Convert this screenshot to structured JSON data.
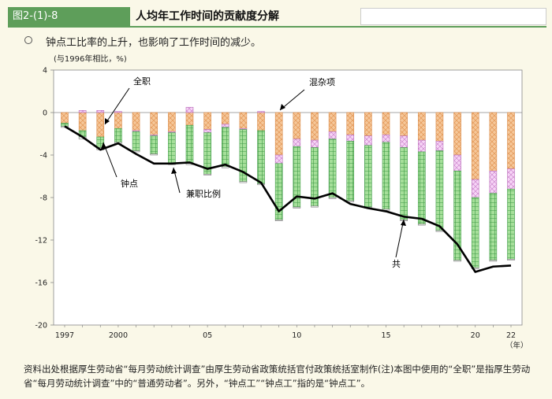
{
  "header": {
    "figure_id": "图2-(1)-8",
    "title": "人均年工作时间的贡献度分解"
  },
  "lead": "钟点工比率的上升，也影响了工作时间的减少。",
  "footnote": "资料出处根据厚生劳动省“每月劳动统计调查”由厚生劳动省政策统括官付政策统括室制作(注)本图中使用的“全职”是指厚生劳动省“每月劳动统计调查”中的“普通劳动者”。另外，“钟点工”“钟点工”指的是“钟点工”。",
  "colors": {
    "header_green": "#5e9e5a",
    "fulltime": "#f5c79a",
    "parttime": "#a6df9a",
    "mixed": "#f0c8f0",
    "total_line": "#000000"
  },
  "chart_data": {
    "type": "bar",
    "unit_label": "(与1996年相比，%)",
    "x": [
      1997,
      1998,
      1999,
      2000,
      2001,
      2002,
      2003,
      2004,
      2005,
      2006,
      2007,
      2008,
      2009,
      2010,
      2011,
      2012,
      2013,
      2014,
      2015,
      2016,
      2017,
      2018,
      2019,
      2020,
      2021,
      2022
    ],
    "x_tick_labels": [
      {
        "x": 1997,
        "label": "1997"
      },
      {
        "x": 2000,
        "label": "2000"
      },
      {
        "x": 2005,
        "label": "05"
      },
      {
        "x": 2010,
        "label": "10"
      },
      {
        "x": 2015,
        "label": "15"
      },
      {
        "x": 2020,
        "label": "20"
      },
      {
        "x": 2022,
        "label": "22"
      }
    ],
    "x_unit": "（年）",
    "ylim": [
      -20,
      4
    ],
    "y_ticks": [
      4,
      0,
      -4,
      -8,
      -12,
      -16,
      -20
    ],
    "series": [
      {
        "name": "全职",
        "key": "fulltime",
        "values": [
          -1.0,
          -1.7,
          -2.3,
          -1.5,
          -1.7,
          -2.1,
          -1.8,
          -1.2,
          -1.6,
          -1.1,
          -1.5,
          -1.7,
          -4.0,
          -2.5,
          -2.6,
          -1.8,
          -2.1,
          -2.2,
          -2.1,
          -2.2,
          -2.6,
          -2.7,
          -4.0,
          -6.3,
          -5.5,
          -5.3
        ]
      },
      {
        "name": "钟点",
        "key": "parttime",
        "values": [
          -0.3,
          -0.6,
          -1.0,
          -1.3,
          -1.8,
          -1.7,
          -2.9,
          -3.6,
          -3.9,
          -3.7,
          -4.9,
          -5.0,
          -5.3,
          -5.7,
          -5.5,
          -5.5,
          -5.6,
          -5.8,
          -6.3,
          -6.8,
          -6.8,
          -7.5,
          -8.4,
          -6.6,
          -6.3,
          -6.6
        ]
      },
      {
        "name": "兼职比例",
        "key": "ratio",
        "values": [
          -0.1,
          -0.2,
          -0.2,
          -0.1,
          -0.1,
          -0.1,
          -0.1,
          -0.1,
          -0.1,
          -0.1,
          -0.1,
          -0.1,
          -0.1,
          -0.1,
          -0.1,
          -0.1,
          -0.1,
          -0.1,
          -0.1,
          -0.1,
          -0.1,
          -0.1,
          -0.1,
          -0.1,
          -0.1,
          -0.1
        ]
      },
      {
        "name": "混杂项",
        "key": "mixed",
        "values": [
          0.0,
          0.2,
          0.2,
          0.1,
          -0.1,
          -0.1,
          -0.1,
          0.5,
          -0.3,
          -0.3,
          -0.1,
          0.1,
          -0.8,
          -0.7,
          -0.7,
          -0.7,
          -0.6,
          -0.9,
          -0.7,
          -1.1,
          -1.1,
          -0.9,
          -1.5,
          -1.7,
          -2.1,
          -1.9
        ]
      },
      {
        "name": "共",
        "key": "total",
        "type": "line",
        "values": [
          -1.3,
          -2.3,
          -3.5,
          -2.9,
          -3.9,
          -4.8,
          -4.8,
          -4.7,
          -5.3,
          -4.9,
          -5.6,
          -6.6,
          -9.3,
          -7.9,
          -8.1,
          -7.6,
          -8.6,
          -9.0,
          -9.3,
          -9.8,
          -10.0,
          -10.7,
          -12.4,
          -15.0,
          -14.5,
          -14.4
        ]
      }
    ],
    "annotations": [
      {
        "text": "全职",
        "target": "fulltime"
      },
      {
        "text": "混杂项",
        "target": "mixed"
      },
      {
        "text": "钟点",
        "target": "parttime"
      },
      {
        "text": "兼职比例",
        "target": "total"
      },
      {
        "text": "共",
        "target": "total"
      }
    ]
  }
}
